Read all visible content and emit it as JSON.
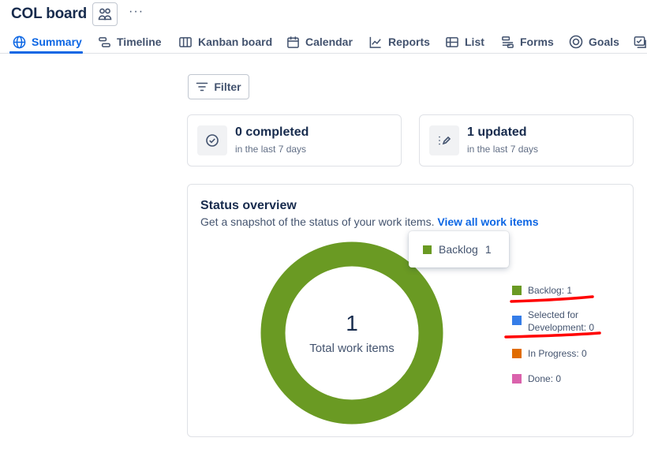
{
  "header": {
    "title": "COL board",
    "more": "···"
  },
  "tabs": [
    {
      "label": "Summary",
      "icon": "globe-icon",
      "active": true
    },
    {
      "label": "Timeline",
      "icon": "timeline-icon"
    },
    {
      "label": "Kanban board",
      "icon": "board-icon"
    },
    {
      "label": "Calendar",
      "icon": "calendar-icon"
    },
    {
      "label": "Reports",
      "icon": "chart-line-icon"
    },
    {
      "label": "List",
      "icon": "list-icon"
    },
    {
      "label": "Forms",
      "icon": "forms-icon"
    },
    {
      "label": "Goals",
      "icon": "goal-icon"
    }
  ],
  "filter": {
    "label": "Filter"
  },
  "stats": {
    "completed": {
      "value": "0 completed",
      "sub": "in the last 7 days"
    },
    "updated": {
      "value": "1 updated",
      "sub": "in the last 7 days"
    }
  },
  "overview": {
    "title": "Status overview",
    "description": "Get a snapshot of the status of your work items.",
    "link": "View all work items",
    "total": "1",
    "total_label": "Total work items",
    "tooltip": {
      "label": "Backlog",
      "count": "1"
    },
    "legend": [
      {
        "label": "Backlog: 1",
        "color": "#6a9a23",
        "value": 1
      },
      {
        "label": "Selected for Development: 0",
        "label_line1": "Selected for",
        "label_line2": "Development: 0",
        "color": "#357de8",
        "value": 0
      },
      {
        "label": "In Progress: 0",
        "color": "#e06c00",
        "value": 0
      },
      {
        "label": "Done: 0",
        "color": "#da62ac",
        "value": 0
      }
    ]
  },
  "colors": {
    "accent": "#0c66e4",
    "backlog": "#6a9a23",
    "annotation": "#ff0000"
  }
}
